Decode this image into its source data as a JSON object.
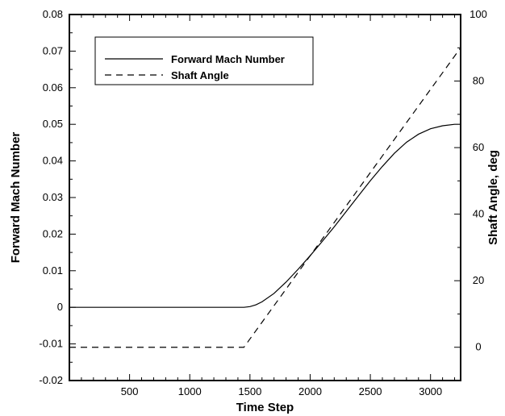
{
  "chart_data": {
    "type": "line",
    "title": "",
    "xlabel": "Time Step",
    "ylabel": "Forward Mach Number",
    "y2label": "Shaft Angle, deg",
    "xlim": [
      0,
      3250
    ],
    "ylim": [
      -0.02,
      0.08
    ],
    "y2lim": [
      -10,
      100
    ],
    "x_ticks": [
      500,
      1000,
      1500,
      2000,
      2500,
      3000
    ],
    "y_ticks": [
      -0.02,
      -0.01,
      0,
      0.01,
      0.02,
      0.03,
      0.04,
      0.05,
      0.06,
      0.07,
      0.08
    ],
    "y_tick_labels": [
      "-0.02",
      "-0.01",
      "0",
      "0.01",
      "0.02",
      "0.03",
      "0.04",
      "0.05",
      "0.06",
      "0.07",
      "0.08"
    ],
    "y2_ticks": [
      0,
      20,
      40,
      60,
      80,
      100
    ],
    "grid": false,
    "legend_position": "top-left",
    "series": [
      {
        "name": "Forward Mach Number",
        "axis": "left",
        "style": "solid",
        "x": [
          0,
          1000,
          1450,
          1500,
          1550,
          1600,
          1700,
          1800,
          1900,
          2000,
          2100,
          2200,
          2300,
          2400,
          2500,
          2600,
          2700,
          2800,
          2900,
          3000,
          3100,
          3200,
          3250
        ],
        "y": [
          0,
          0,
          0,
          0.0002,
          0.0007,
          0.0015,
          0.0038,
          0.0069,
          0.0104,
          0.0141,
          0.018,
          0.022,
          0.0262,
          0.0304,
          0.0346,
          0.0385,
          0.0421,
          0.0451,
          0.0473,
          0.0488,
          0.0496,
          0.05,
          0.05
        ]
      },
      {
        "name": "Shaft Angle",
        "axis": "right",
        "style": "dashed",
        "x": [
          0,
          1450,
          3250
        ],
        "y": [
          0,
          0,
          90
        ]
      }
    ]
  }
}
